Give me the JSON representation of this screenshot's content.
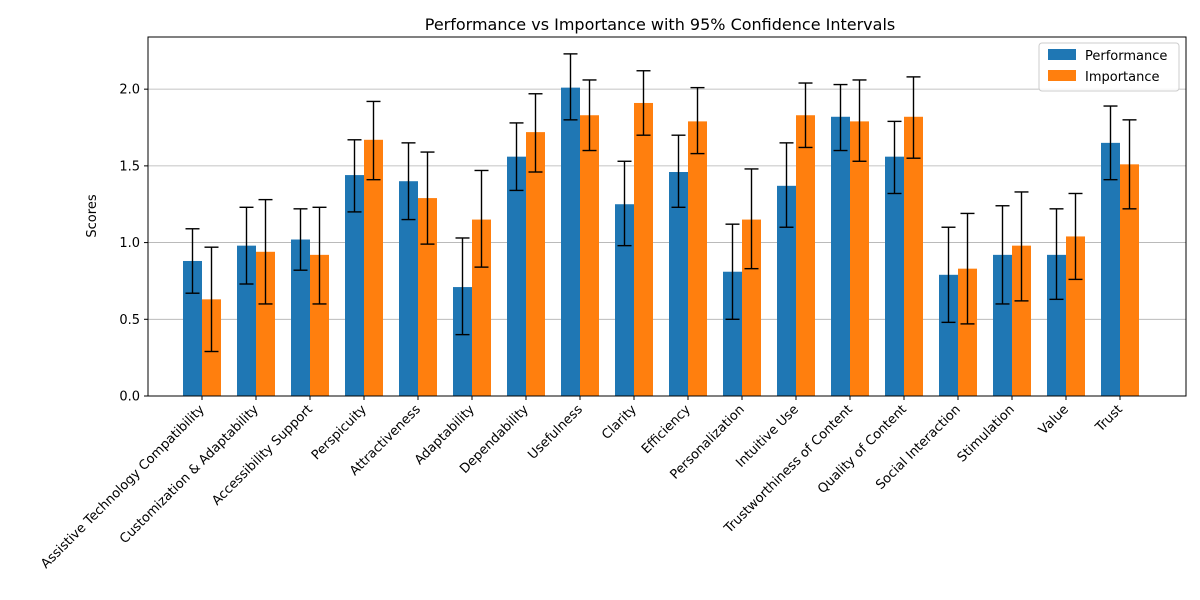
{
  "chart_data": {
    "type": "bar",
    "title": "Performance vs Importance with 95% Confidence Intervals",
    "xlabel": "",
    "ylabel": "Scores",
    "ylim": [
      0,
      2.34
    ],
    "yticks": [
      "0.0",
      "0.5",
      "1.0",
      "1.5",
      "2.0"
    ],
    "grid": "horizontal",
    "legend_position": "top-right",
    "categories": [
      "Assistive Technology Compatibility",
      "Customization & Adaptability",
      "Accessibility Support",
      "Perspicuity",
      "Attractiveness",
      "Adaptability",
      "Dependability",
      "Usefulness",
      "Clarity",
      "Efficiency",
      "Personalization",
      "Intuitive Use",
      "Trustworthiness of Content",
      "Quality of Content",
      "Social Interaction",
      "Stimulation",
      "Value",
      "Trust"
    ],
    "series": [
      {
        "name": "Performance",
        "color": "#1f77b4",
        "values": [
          0.88,
          0.98,
          1.02,
          1.44,
          1.4,
          0.71,
          1.56,
          2.01,
          1.25,
          1.46,
          0.81,
          1.37,
          1.82,
          1.56,
          0.79,
          0.92,
          0.92,
          1.65
        ],
        "err_low": [
          0.67,
          0.73,
          0.82,
          1.2,
          1.15,
          0.4,
          1.34,
          1.8,
          0.98,
          1.23,
          0.5,
          1.1,
          1.6,
          1.32,
          0.48,
          0.6,
          0.63,
          1.41
        ],
        "err_high": [
          1.09,
          1.23,
          1.22,
          1.67,
          1.65,
          1.03,
          1.78,
          2.23,
          1.53,
          1.7,
          1.12,
          1.65,
          2.03,
          1.79,
          1.1,
          1.24,
          1.22,
          1.89
        ]
      },
      {
        "name": "Importance",
        "color": "#ff7f0e",
        "values": [
          0.63,
          0.94,
          0.92,
          1.67,
          1.29,
          1.15,
          1.72,
          1.83,
          1.91,
          1.79,
          1.15,
          1.83,
          1.79,
          1.82,
          0.83,
          0.98,
          1.04,
          1.51
        ],
        "err_low": [
          0.29,
          0.6,
          0.6,
          1.41,
          0.99,
          0.84,
          1.46,
          1.6,
          1.7,
          1.58,
          0.83,
          1.62,
          1.53,
          1.55,
          0.47,
          0.62,
          0.76,
          1.22
        ],
        "err_high": [
          0.97,
          1.28,
          1.23,
          1.92,
          1.59,
          1.47,
          1.97,
          2.06,
          2.12,
          2.01,
          1.48,
          2.04,
          2.06,
          2.08,
          1.19,
          1.33,
          1.32,
          1.8
        ]
      }
    ]
  }
}
